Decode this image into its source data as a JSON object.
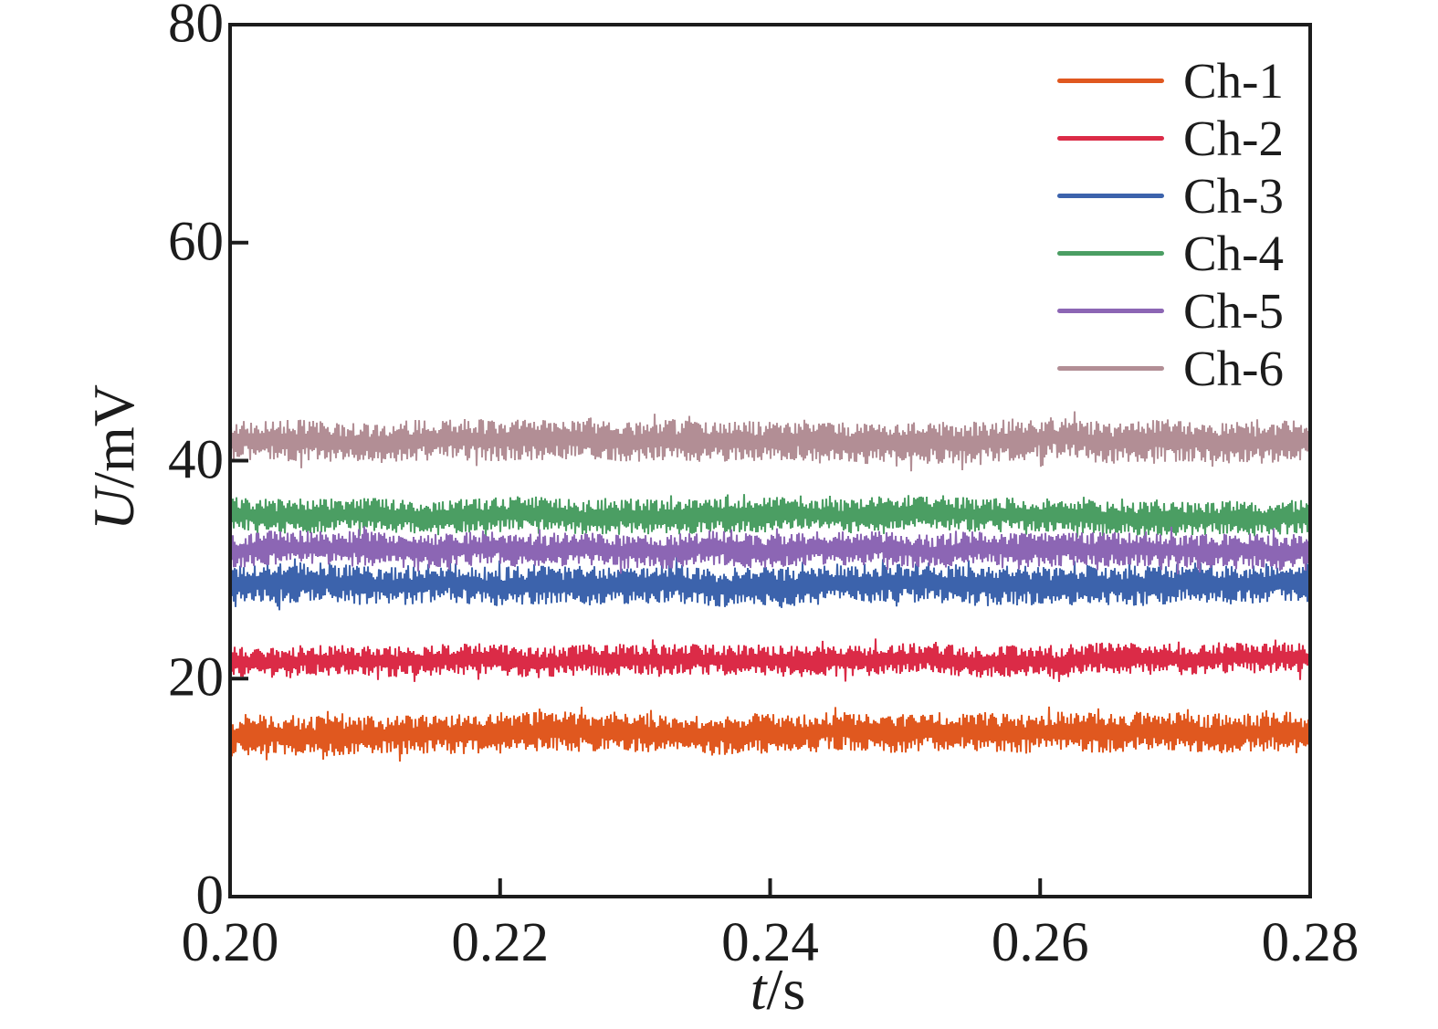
{
  "figure": {
    "background_color": "#ffffff",
    "axis_color": "#1c1c1c"
  },
  "axis_labels": {
    "y_variable": "U",
    "y_unit_suffix": "/mV",
    "x_variable": "t",
    "x_unit_suffix": "/s"
  },
  "chart_data": {
    "type": "line",
    "title": "",
    "xlabel": "t/s",
    "ylabel": "U/mV",
    "xlim": [
      0.2,
      0.28
    ],
    "ylim": [
      0,
      80
    ],
    "grid": false,
    "legend_position": "upper right",
    "legend_frame": false,
    "x_ticks": [
      {
        "value": 0.2,
        "label": "0.20"
      },
      {
        "value": 0.22,
        "label": "0.22"
      },
      {
        "value": 0.24,
        "label": "0.24"
      },
      {
        "value": 0.26,
        "label": "0.26"
      },
      {
        "value": 0.28,
        "label": "0.28"
      }
    ],
    "y_ticks": [
      {
        "value": 0,
        "label": "0"
      },
      {
        "value": 20,
        "label": "20"
      },
      {
        "value": 40,
        "label": "40"
      },
      {
        "value": 60,
        "label": "60"
      },
      {
        "value": 80,
        "label": "80"
      }
    ],
    "series": [
      {
        "name": "Ch-1",
        "color": "#E0581F",
        "mean_mV": 15.0,
        "noise_peak_to_peak_mV": 3.7,
        "x_range": [
          0.2,
          0.28
        ]
      },
      {
        "name": "Ch-2",
        "color": "#DB2B47",
        "mean_mV": 21.7,
        "noise_peak_to_peak_mV": 2.9,
        "x_range": [
          0.2,
          0.28
        ]
      },
      {
        "name": "Ch-3",
        "color": "#3C63AC",
        "mean_mV": 28.6,
        "noise_peak_to_peak_mV": 3.7,
        "x_range": [
          0.2,
          0.28
        ]
      },
      {
        "name": "Ch-4",
        "color": "#4B9E63",
        "mean_mV": 35.0,
        "noise_peak_to_peak_mV": 3.2,
        "x_range": [
          0.2,
          0.28
        ]
      },
      {
        "name": "Ch-5",
        "color": "#8C66B4",
        "mean_mV": 31.8,
        "noise_peak_to_peak_mV": 3.2,
        "x_range": [
          0.2,
          0.28
        ]
      },
      {
        "name": "Ch-6",
        "color": "#B28E95",
        "mean_mV": 41.9,
        "noise_peak_to_peak_mV": 3.9,
        "x_range": [
          0.2,
          0.28
        ]
      }
    ]
  }
}
